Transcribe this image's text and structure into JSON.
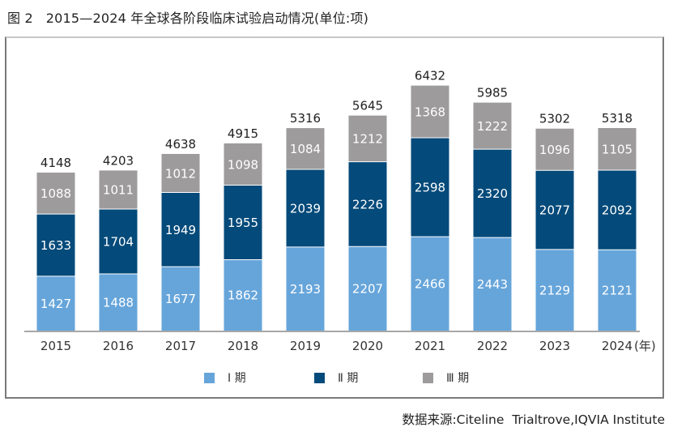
{
  "figure": {
    "title": "图 2   2015—2024 年全球各阶段临床试验启动情况(单位:项)",
    "source": "数据来源:Citeline  Trialtrove,IQVIA Institute"
  },
  "chart_data": {
    "type": "bar",
    "stacked": true,
    "title": "2015—2024 年全球各阶段临床试验启动情况(单位:项)",
    "xlabel": "",
    "ylabel": "",
    "x_unit_label": "(年)",
    "categories": [
      "2015",
      "2016",
      "2017",
      "2018",
      "2019",
      "2020",
      "2021",
      "2022",
      "2023",
      "2024"
    ],
    "series": [
      {
        "name": "Ⅰ 期",
        "color": "#66a5da",
        "values": [
          1427,
          1488,
          1677,
          1862,
          2193,
          2207,
          2466,
          2443,
          2129,
          2121
        ]
      },
      {
        "name": "Ⅱ 期",
        "color": "#044a7a",
        "values": [
          1633,
          1704,
          1949,
          1955,
          2039,
          2226,
          2598,
          2320,
          2077,
          2092
        ]
      },
      {
        "name": "Ⅲ 期",
        "color": "#9d9b9c",
        "values": [
          1088,
          1011,
          1012,
          1098,
          1084,
          1212,
          1368,
          1222,
          1096,
          1105
        ]
      }
    ],
    "totals": [
      4148,
      4203,
      4638,
      4915,
      5316,
      5645,
      6432,
      5985,
      5302,
      5318
    ],
    "ylim": [
      0,
      7000
    ],
    "grid": false,
    "legend_position": "bottom-center"
  }
}
